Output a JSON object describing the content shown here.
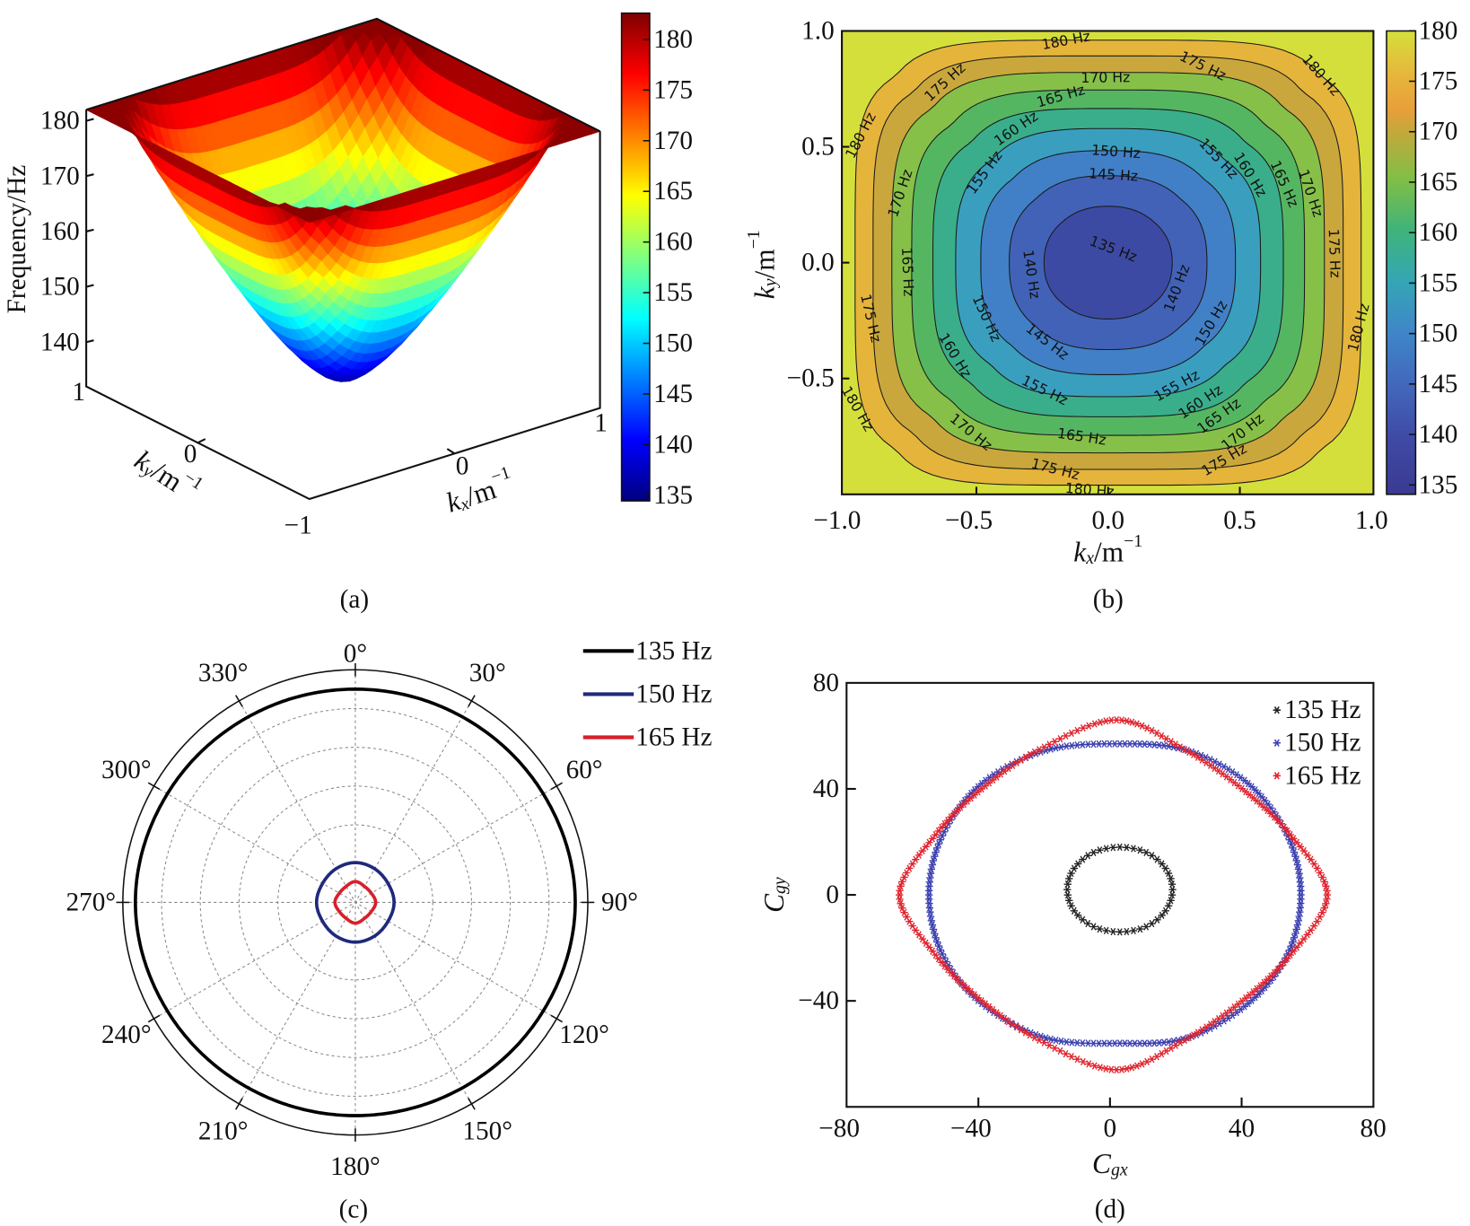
{
  "panels": {
    "a": "(a)",
    "b": "(b)",
    "c": "(c)",
    "d": "(d)"
  },
  "chart_data": [
    {
      "id": "a",
      "type": "surface",
      "zlabel": "Frequency/Hz",
      "xlabel": {
        "base": "k",
        "sub": "x",
        "unit": "/m",
        "sup": "−1"
      },
      "ylabel": {
        "base": "k",
        "sub": "y",
        "unit": "/m",
        "sup": "−1"
      },
      "xticks": [
        "0",
        "1"
      ],
      "yticks": [
        "1",
        "0",
        "−1"
      ],
      "zticks": [
        "140",
        "150",
        "160",
        "170",
        "180"
      ],
      "xlim": [
        -1,
        1
      ],
      "ylim": [
        -1,
        1
      ],
      "zlim": [
        132,
        182
      ],
      "surface": {
        "min_value": 135,
        "edge_value": 180,
        "max_value": 182
      },
      "colormap": "jet",
      "colorbar": {
        "ticks": [
          "135",
          "140",
          "145",
          "150",
          "155",
          "160",
          "165",
          "170",
          "175",
          "180"
        ],
        "range": [
          134.4,
          182.6
        ]
      }
    },
    {
      "id": "b",
      "type": "heatmap",
      "subtype": "filled contour",
      "xlabel": {
        "base": "k",
        "sub": "x",
        "unit": "/m",
        "sup": "−1"
      },
      "ylabel": {
        "base": "k",
        "sub": "y",
        "unit": "/m",
        "sup": "−1"
      },
      "xticks": [
        "−1.0",
        "−0.5",
        "0.0",
        "0.5",
        "1.0"
      ],
      "yticks": [
        "1.0",
        "0.5",
        "0.0",
        "−0.5"
      ],
      "xlim": [
        -1,
        1
      ],
      "ylim": [
        -1,
        1
      ],
      "levels": [
        135,
        140,
        145,
        150,
        155,
        160,
        165,
        170,
        175,
        180
      ],
      "band_colors": {
        "below_140": "#3a3a92",
        "140": "#3d4aa3",
        "145": "#4262b8",
        "150": "#4180c6",
        "155": "#3a9fbf",
        "160": "#3aae8a",
        "165": "#55b662",
        "170": "#86c049",
        "175": "#c9a73c",
        "180": "#e5b43b",
        "above_180": "#d5df3b"
      },
      "contour_labels": [
        {
          "text": "180 Hz",
          "kx": -0.16,
          "ky": 0.96
        },
        {
          "text": "175 Hz",
          "kx": 0.36,
          "ky": 0.85
        },
        {
          "text": "180 Hz",
          "kx": 0.81,
          "ky": 0.81
        },
        {
          "text": "175 Hz",
          "kx": -0.62,
          "ky": 0.78
        },
        {
          "text": "170 Hz",
          "kx": -0.01,
          "ky": 0.8
        },
        {
          "text": "165 Hz",
          "kx": -0.18,
          "ky": 0.72
        },
        {
          "text": "160 Hz",
          "kx": -0.35,
          "ky": 0.58
        },
        {
          "text": "150 Hz",
          "kx": 0.03,
          "ky": 0.48
        },
        {
          "text": "145 Hz",
          "kx": 0.02,
          "ky": 0.38
        },
        {
          "text": "155 Hz",
          "kx": -0.47,
          "ky": 0.39
        },
        {
          "text": "155 Hz",
          "kx": 0.42,
          "ky": 0.45
        },
        {
          "text": "160 Hz",
          "kx": 0.54,
          "ky": 0.38
        },
        {
          "text": "165 Hz",
          "kx": 0.67,
          "ky": 0.34
        },
        {
          "text": "170 Hz",
          "kx": 0.77,
          "ky": 0.3
        },
        {
          "text": "180 Hz",
          "kx": -0.94,
          "ky": 0.55
        },
        {
          "text": "170 Hz",
          "kx": -0.79,
          "ky": 0.3
        },
        {
          "text": "175 Hz",
          "kx": 0.86,
          "ky": 0.04
        },
        {
          "text": "135 Hz",
          "kx": 0.02,
          "ky": 0.06
        },
        {
          "text": "140 Hz",
          "kx": -0.29,
          "ky": -0.05
        },
        {
          "text": "140 Hz",
          "kx": 0.26,
          "ky": -0.11
        },
        {
          "text": "165 Hz",
          "kx": -0.76,
          "ky": -0.04
        },
        {
          "text": "150 Hz",
          "kx": -0.46,
          "ky": -0.24
        },
        {
          "text": "145 Hz",
          "kx": -0.23,
          "ky": -0.34
        },
        {
          "text": "150 Hz",
          "kx": 0.39,
          "ky": -0.26
        },
        {
          "text": "175 Hz",
          "kx": -0.9,
          "ky": -0.24
        },
        {
          "text": "180 Hz",
          "kx": 0.95,
          "ky": -0.28
        },
        {
          "text": "160 Hz",
          "kx": -0.58,
          "ky": -0.4
        },
        {
          "text": "155 Hz",
          "kx": -0.24,
          "ky": -0.55
        },
        {
          "text": "155 Hz",
          "kx": 0.26,
          "ky": -0.53
        },
        {
          "text": "160 Hz",
          "kx": 0.35,
          "ky": -0.6
        },
        {
          "text": "165 Hz",
          "kx": 0.42,
          "ky": -0.66
        },
        {
          "text": "170 Hz",
          "kx": 0.51,
          "ky": -0.73
        },
        {
          "text": "180 Hz",
          "kx": -0.95,
          "ky": -0.63
        },
        {
          "text": "170 Hz",
          "kx": -0.52,
          "ky": -0.73
        },
        {
          "text": "165 Hz",
          "kx": -0.1,
          "ky": -0.75
        },
        {
          "text": "175 Hz",
          "kx": -0.2,
          "ky": -0.89
        },
        {
          "text": "175 Hz",
          "kx": 0.44,
          "ky": -0.85
        },
        {
          "text": "180 Hz",
          "kx": -0.07,
          "ky": -0.98
        }
      ],
      "colorbar": {
        "ticks": [
          "135",
          "140",
          "145",
          "150",
          "155",
          "160",
          "165",
          "170",
          "175",
          "180"
        ],
        "range": [
          134.1,
          180
        ]
      }
    },
    {
      "id": "c",
      "type": "line",
      "subtype": "polar",
      "theta_labels": [
        "0°",
        "30°",
        "60°",
        "90°",
        "120°",
        "150°",
        "180°",
        "210°",
        "240°",
        "270°",
        "300°",
        "330°"
      ],
      "theta_direction": "clockwise from top",
      "rlim": [
        0,
        12
      ],
      "rgrid": [
        2,
        4,
        6,
        8,
        10
      ],
      "grid": true,
      "legend": "top-right",
      "series": [
        {
          "name": "135 Hz",
          "color": "#000000",
          "theta_deg": [
            0,
            30,
            60,
            90,
            120,
            150,
            180,
            210,
            240,
            270,
            300,
            330
          ],
          "r": [
            11.0,
            11.05,
            11.2,
            11.35,
            11.2,
            11.05,
            11.0,
            11.05,
            11.2,
            11.35,
            11.2,
            11.05
          ]
        },
        {
          "name": "150 Hz",
          "color": "#1f2a7a",
          "theta_deg": [
            0,
            30,
            60,
            90,
            120,
            150,
            180,
            210,
            240,
            270,
            300,
            330
          ],
          "r": [
            2.05,
            2.0,
            1.95,
            2.0,
            1.95,
            2.0,
            2.05,
            2.0,
            1.95,
            2.0,
            1.95,
            2.0
          ]
        },
        {
          "name": "165 Hz",
          "color": "#d8202a",
          "theta_deg": [
            0,
            30,
            60,
            90,
            120,
            150,
            180,
            210,
            240,
            270,
            300,
            330
          ],
          "r": [
            1.07,
            0.95,
            0.95,
            1.05,
            0.95,
            0.95,
            1.07,
            0.95,
            0.95,
            1.05,
            0.95,
            0.95
          ]
        }
      ]
    },
    {
      "id": "d",
      "type": "scatter",
      "xlabel": {
        "base": "C",
        "sub": "gx"
      },
      "ylabel": {
        "base": "C",
        "sub": "gy"
      },
      "xticks": [
        "−80",
        "−40",
        "0",
        "40",
        "80"
      ],
      "yticks": [
        "80",
        "40",
        "0",
        "−40"
      ],
      "xlim": [
        -80,
        80
      ],
      "ylim": [
        -80,
        80
      ],
      "legend": "top-right",
      "marker": "asterisk",
      "series": [
        {
          "name": "135 Hz",
          "color": "#222222",
          "closed_curve": [
            [
              19,
              2
            ],
            [
              16.9,
              10
            ],
            [
              11,
              16
            ],
            [
              3,
              18
            ],
            [
              -5,
              16
            ],
            [
              -10.9,
              10
            ],
            [
              -13,
              2
            ],
            [
              -10.9,
              -6
            ],
            [
              -5,
              -12
            ],
            [
              3,
              -14
            ],
            [
              11,
              -12
            ],
            [
              16.9,
              -6
            ]
          ]
        },
        {
          "name": "150 Hz",
          "color": "#3a3fb0",
          "closed_curve": [
            [
              58,
              0
            ],
            [
              54,
              22.3
            ],
            [
              42,
              42
            ],
            [
              23.5,
              54.5
            ],
            [
              3,
              57
            ],
            [
              -19.5,
              54.5
            ],
            [
              -39,
              42
            ],
            [
              -51,
              22.3
            ],
            [
              -55,
              0
            ],
            [
              -51,
              -22.3
            ],
            [
              -39,
              -41
            ],
            [
              -19.5,
              -54
            ],
            [
              3,
              -56
            ],
            [
              23.5,
              -54
            ],
            [
              42,
              -41
            ],
            [
              54,
              -22.3
            ]
          ]
        },
        {
          "name": "165 Hz",
          "color": "#e0242e",
          "closed_curve": [
            [
              66,
              0
            ],
            [
              54.8,
              22.7
            ],
            [
              40.1,
              40.1
            ],
            [
              22.7,
              54.8
            ],
            [
              2,
              66
            ],
            [
              -21.5,
              54.8
            ],
            [
              -39,
              40
            ],
            [
              -53,
              22.7
            ],
            [
              -64,
              0
            ],
            [
              -53,
              -22.7
            ],
            [
              -39,
              -40
            ],
            [
              -21.5,
              -54.8
            ],
            [
              2,
              -66
            ],
            [
              22.7,
              -54.8
            ],
            [
              40.1,
              -40.1
            ],
            [
              54.8,
              -22.7
            ]
          ]
        }
      ]
    }
  ]
}
